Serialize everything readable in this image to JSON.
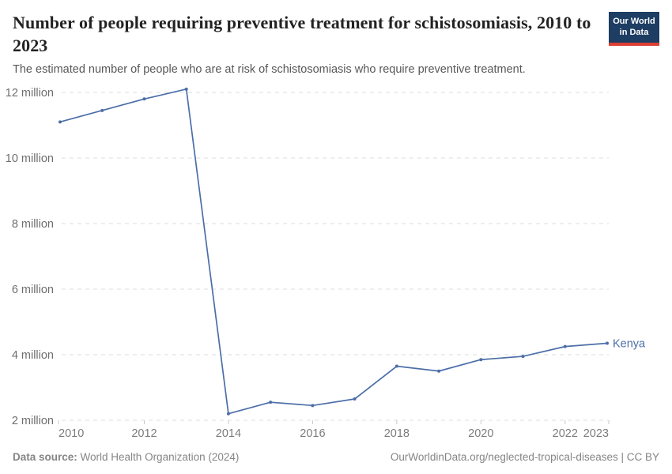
{
  "header": {
    "title": "Number of people requiring preventive treatment for schistosomiasis, 2010 to 2023",
    "subtitle": "The estimated number of people who are at risk of schistosomiasis who require preventive treatment.",
    "logo": {
      "line1": "Our World",
      "line2": "in Data"
    }
  },
  "footer": {
    "data_source_label": "Data source:",
    "data_source_value": " World Health Organization (2024)",
    "attribution": "OurWorldinData.org/neglected-tropical-diseases | CC BY"
  },
  "colors": {
    "series_line": "#4c6ea8",
    "gridline": "#dedede",
    "tick_mark": "#c8c8c8",
    "y_axis_label": "#6e6e6e",
    "x_axis_label": "#7c7c7c",
    "logo_bg": "#1d3d63",
    "logo_accent": "#dc3e32"
  },
  "chart_data": {
    "type": "line",
    "title": "Number of people requiring preventive treatment for schistosomiasis, 2010 to 2023",
    "xlabel": "",
    "ylabel": "",
    "unit": "people",
    "grid": "horizontal-dashed",
    "legend_position": "end-of-line-label",
    "x": [
      2010,
      2011,
      2012,
      2013,
      2014,
      2015,
      2016,
      2017,
      2018,
      2019,
      2020,
      2021,
      2022,
      2023
    ],
    "series": [
      {
        "name": "Kenya",
        "values": [
          11100000,
          11450000,
          11800000,
          12100000,
          2200000,
          2550000,
          2450000,
          2650000,
          3650000,
          3500000,
          3850000,
          3950000,
          4250000,
          4350000
        ]
      }
    ],
    "ylim": [
      2000000,
      12000000
    ],
    "xlim": [
      2010,
      2023
    ],
    "yticks": [
      {
        "value": 2000000,
        "label": "2 million"
      },
      {
        "value": 4000000,
        "label": "4 million"
      },
      {
        "value": 6000000,
        "label": "6 million"
      },
      {
        "value": 8000000,
        "label": "8 million"
      },
      {
        "value": 10000000,
        "label": "10 million"
      },
      {
        "value": 12000000,
        "label": "12 million"
      }
    ],
    "xticks": [
      2010,
      2012,
      2014,
      2016,
      2018,
      2020,
      2022,
      2023
    ]
  }
}
